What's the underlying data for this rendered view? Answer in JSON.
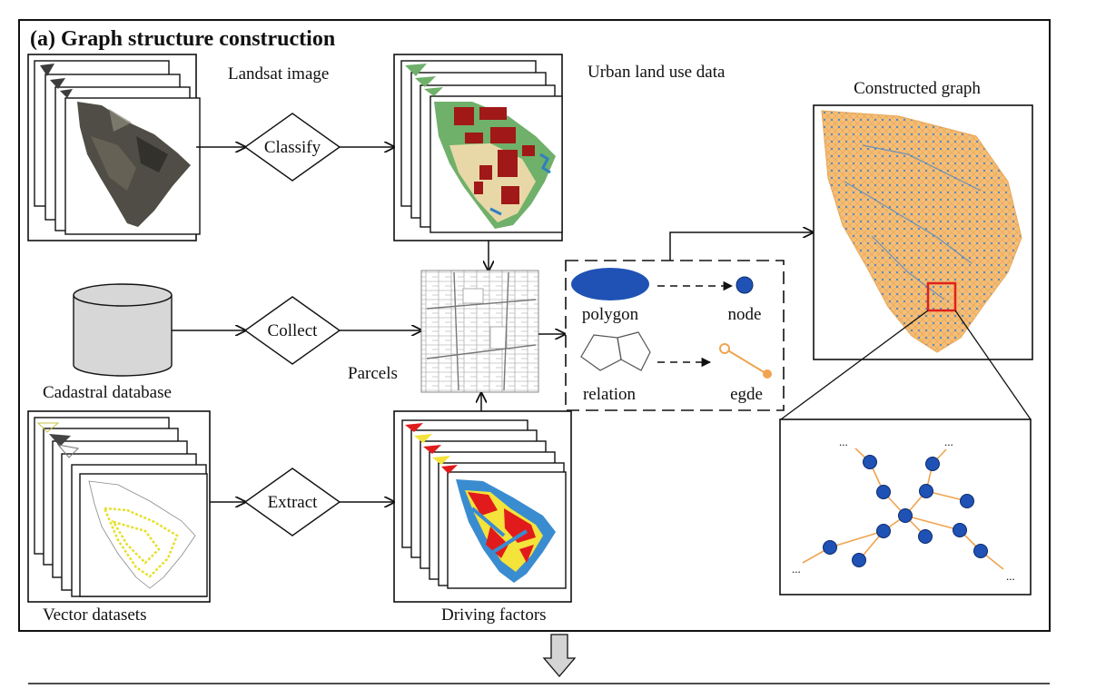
{
  "title": "(a) Graph structure construction",
  "inputs": {
    "landsat": "Landsat image",
    "cadastral": "Cadastral database",
    "vector": "Vector datasets"
  },
  "operations": {
    "classify": "Classify",
    "collect": "Collect",
    "extract": "Extract"
  },
  "outputs": {
    "land_use": "Urban land use data",
    "parcels": "Parcels",
    "driving": "Driving factors",
    "graph": "Constructed graph"
  },
  "legend": {
    "polygon": "polygon",
    "node": "node",
    "relation": "relation",
    "edge": "egde"
  },
  "ellipsis": "...",
  "colors": {
    "node_blue": "#1f52b4",
    "edge_orange": "#f0a450",
    "highlight_red": "#e0201c",
    "landuse_red": "#a01818",
    "landuse_green": "#6fb06a",
    "landuse_tan": "#e8d8a8",
    "factor_red": "#e11b1b",
    "factor_blue": "#3a8cd0",
    "factor_yellow": "#f3e33a",
    "vector_yellow": "#e6e030"
  }
}
